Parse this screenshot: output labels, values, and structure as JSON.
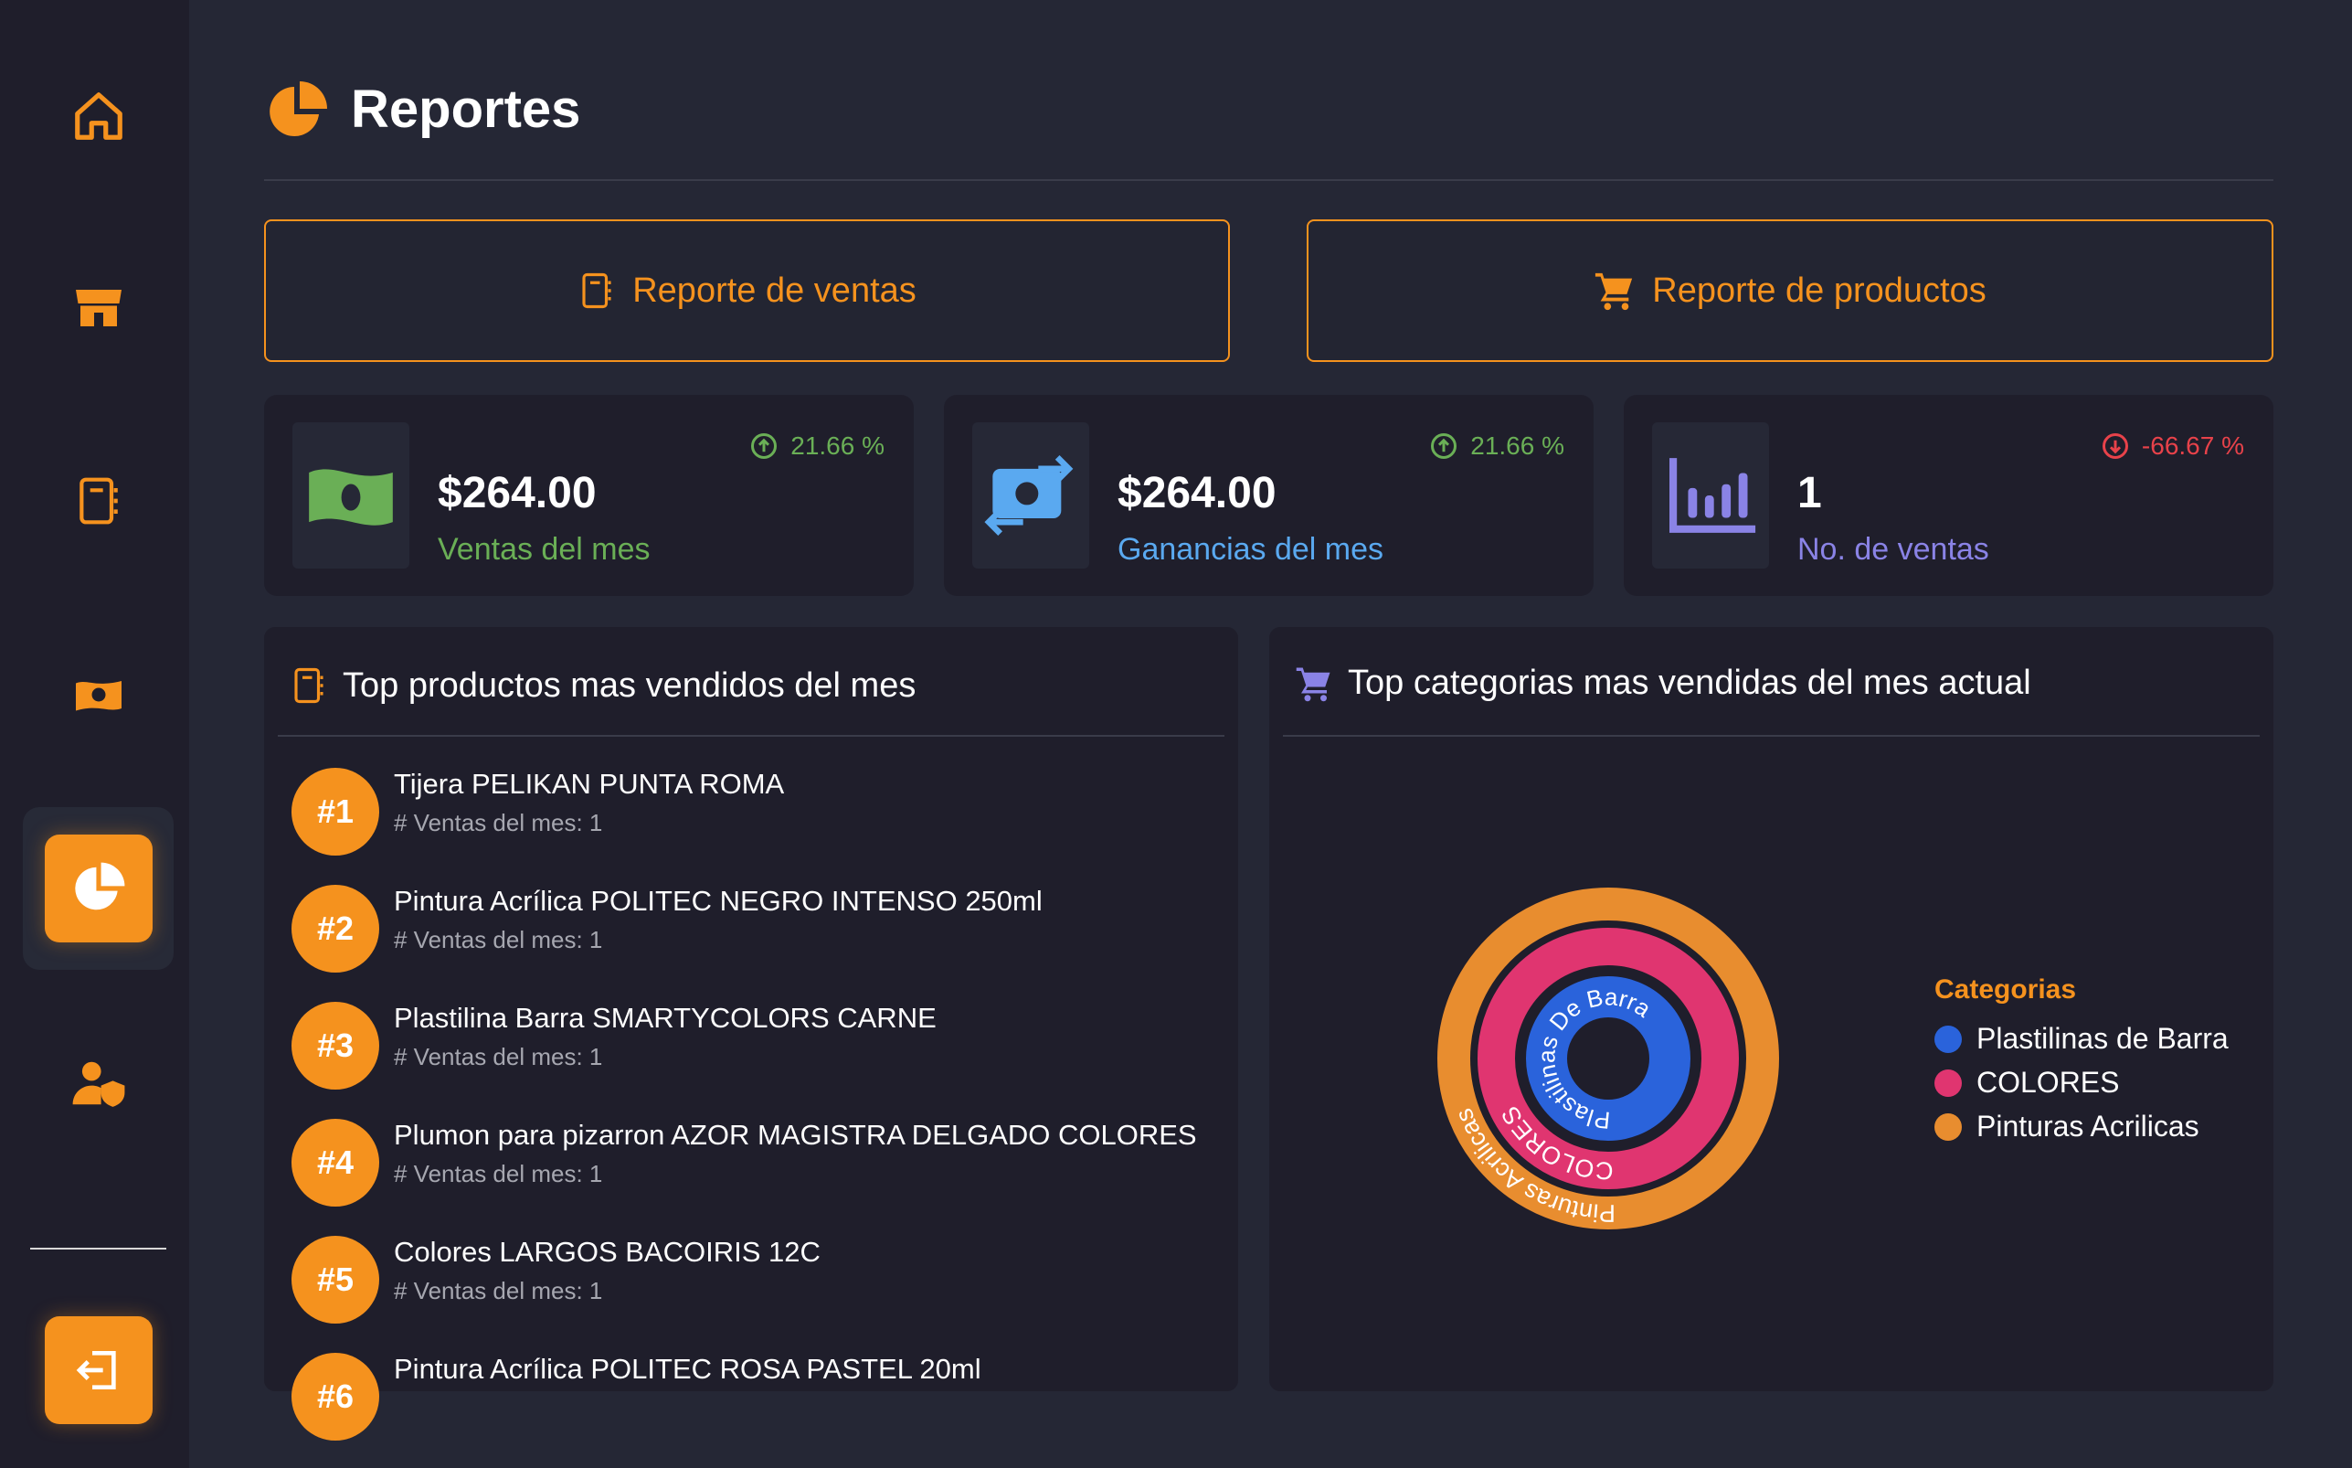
{
  "sidebar": {
    "items": [
      {
        "icon": "home-icon"
      },
      {
        "icon": "store-icon"
      },
      {
        "icon": "notebook-icon"
      },
      {
        "icon": "money-icon"
      },
      {
        "icon": "pie-chart-icon",
        "active": true
      },
      {
        "icon": "user-shield-icon"
      }
    ],
    "logout_icon": "logout-icon"
  },
  "header": {
    "title": "Reportes",
    "icon": "pie-chart-icon"
  },
  "buttons": {
    "sales_report": "Reporte de ventas",
    "products_report": "Reporte de productos"
  },
  "stats": [
    {
      "value": "$264.00",
      "label": "Ventas del mes",
      "change": "21.66 %",
      "trend": "up",
      "color": "#6aaf56",
      "icon": "money-bill-icon"
    },
    {
      "value": "$264.00",
      "label": "Ganancias del mes",
      "change": "21.66 %",
      "trend": "up",
      "color": "#5aa9f0",
      "icon": "money-exchange-icon"
    },
    {
      "value": "1",
      "label": "No. de ventas",
      "change": "-66.67 %",
      "trend": "down",
      "color": "#8a83e6",
      "icon": "bar-chart-icon"
    }
  ],
  "top_products": {
    "title": "Top productos mas vendidos del mes",
    "items": [
      {
        "rank": "#1",
        "name": "Tijera PELIKAN PUNTA ROMA",
        "sales": "# Ventas del mes: 1"
      },
      {
        "rank": "#2",
        "name": "Pintura Acrílica POLITEC NEGRO INTENSO 250ml",
        "sales": "# Ventas del mes: 1"
      },
      {
        "rank": "#3",
        "name": "Plastilina Barra SMARTYCOLORS CARNE",
        "sales": "# Ventas del mes: 1"
      },
      {
        "rank": "#4",
        "name": "Plumon para pizarron AZOR MAGISTRA DELGADO COLORES",
        "sales": "# Ventas del mes: 1"
      },
      {
        "rank": "#5",
        "name": "Colores LARGOS BACOIRIS 12C",
        "sales": "# Ventas del mes: 1"
      },
      {
        "rank": "#6",
        "name": "Pintura Acrílica POLITEC ROSA PASTEL 20ml",
        "sales": ""
      }
    ]
  },
  "top_categories": {
    "title": "Top categorias mas vendidas del mes actual",
    "chart_data": {
      "type": "pie",
      "subtype": "radial-rings",
      "legend_title": "Categorias",
      "legend_position": "right",
      "categories": [
        "Plastilinas de Barra",
        "COLORES",
        "Pinturas Acrilicas"
      ],
      "ring_labels": [
        "Plastilinas De Barra",
        "COLORES",
        "Pinturas Acrilicas"
      ],
      "colors": [
        "#2a63db",
        "#e03570",
        "#e88d2f"
      ],
      "values": [
        1,
        1,
        1
      ]
    }
  }
}
